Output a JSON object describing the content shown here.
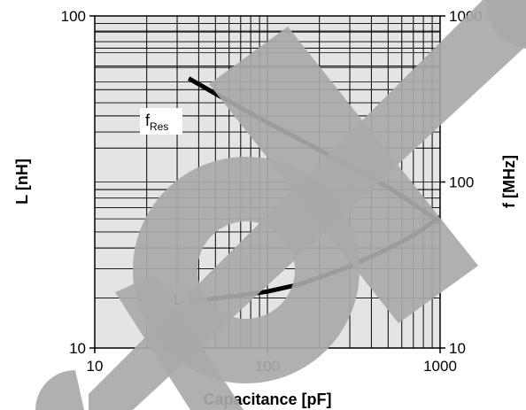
{
  "chart_data": {
    "type": "line",
    "title": "",
    "xlabel": "Capacitance [pF]",
    "ylabel": "L [nH]",
    "y2label": "f [MHz]",
    "x_scale": "log",
    "y_scale": "log",
    "y2_scale": "log",
    "xlim": [
      10,
      1000
    ],
    "ylim": [
      10,
      100
    ],
    "y2lim": [
      10,
      1000
    ],
    "x_ticks": [
      "10",
      "100",
      "1000"
    ],
    "y_ticks": [
      "10",
      "100"
    ],
    "y2_ticks": [
      "10",
      "100",
      "1000"
    ],
    "grid": true,
    "legend": "none",
    "series": [
      {
        "name": "fRes",
        "label_main": "f",
        "label_sub": "Res",
        "axis": "right",
        "x": [
          35,
          50,
          70,
          100,
          150,
          200,
          300,
          500,
          700,
          1000
        ],
        "y": [
          420,
          340,
          280,
          228,
          183,
          156,
          124,
          93,
          74,
          57
        ]
      },
      {
        "name": "L",
        "label_main": "L",
        "label_sub": "",
        "axis": "left",
        "x": [
          35,
          50,
          70,
          100,
          150,
          200,
          300,
          500,
          700,
          1000
        ],
        "y": [
          13.8,
          14.1,
          14.4,
          14.8,
          15.5,
          16.3,
          17.6,
          19.9,
          21.8,
          24.8
        ]
      }
    ],
    "colors": {
      "curve": "#000000",
      "grid": "#000000",
      "plot_bg": "#e4e4e4",
      "watermark": "#a9a9a9"
    }
  }
}
